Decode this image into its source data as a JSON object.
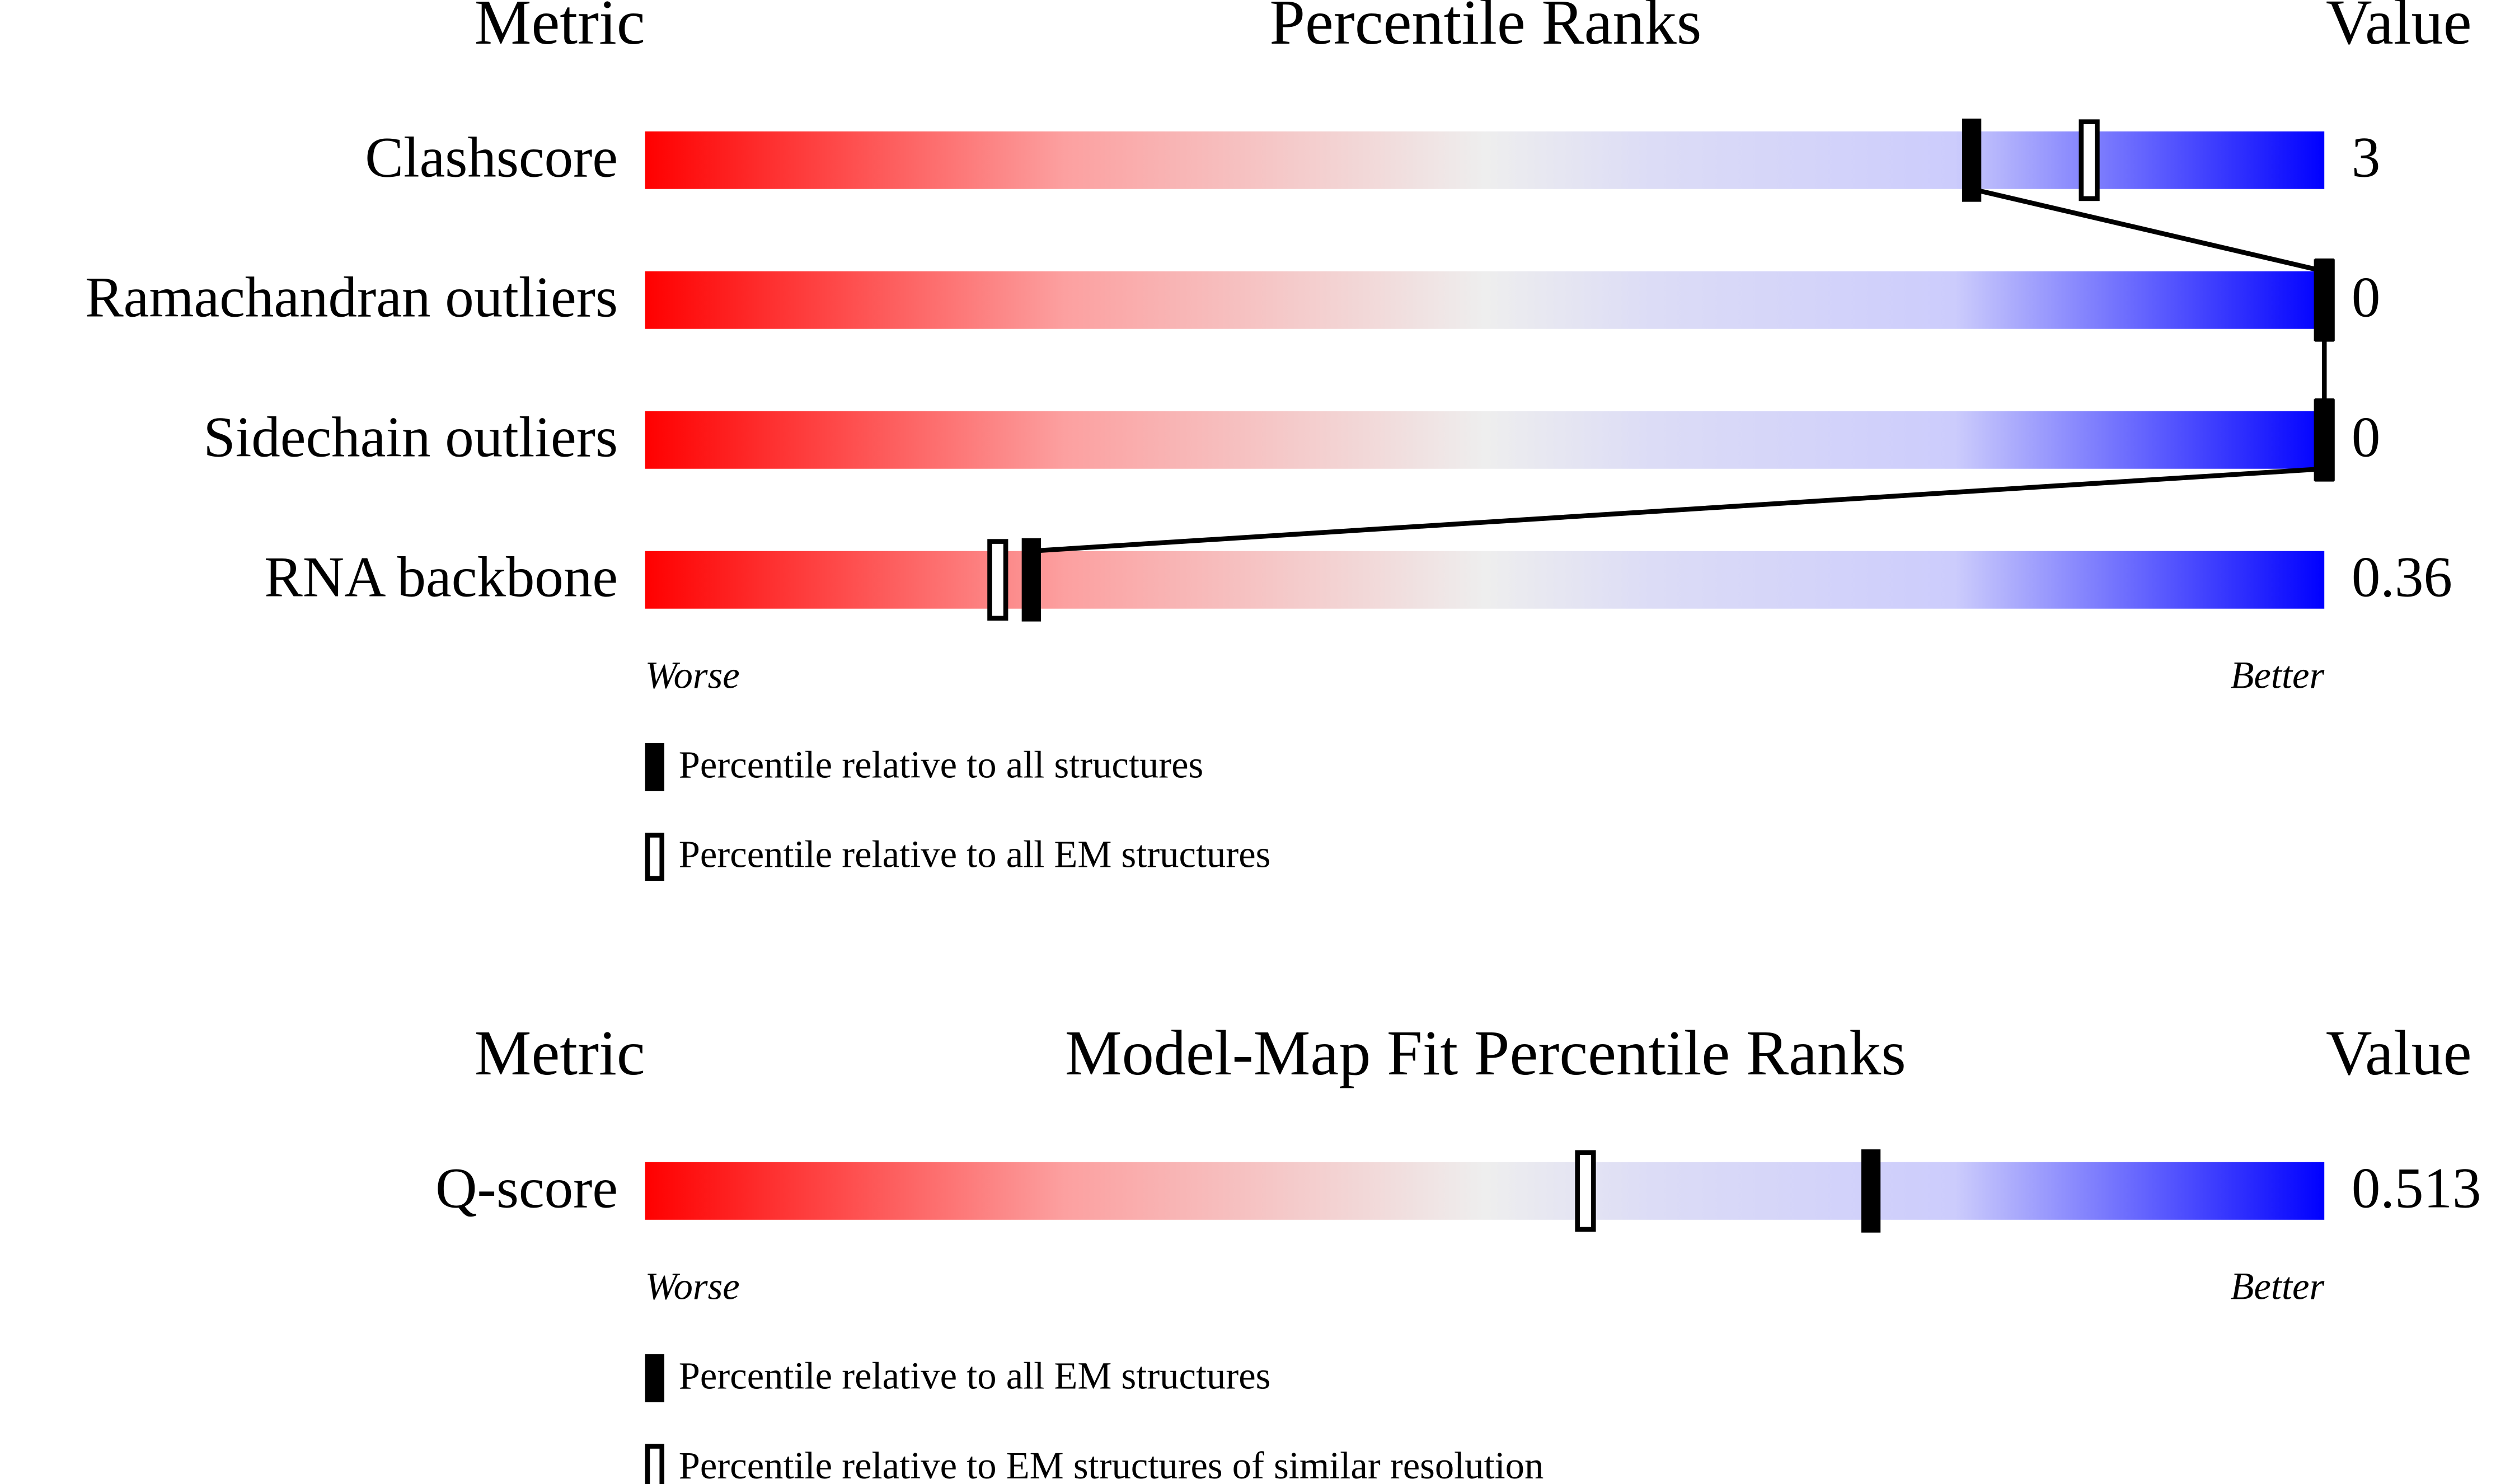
{
  "chart_data": [
    {
      "type": "slider",
      "metric_header": "Metric",
      "title": "Percentile Ranks",
      "value_header": "Value",
      "categories": [
        "Clashscore",
        "Ramachandran outliers",
        "Sidechain outliers",
        "RNA backbone"
      ],
      "metric_values": [
        3,
        0,
        0,
        0.36
      ],
      "xlim": [
        0,
        100
      ],
      "worse_label": "Worse",
      "better_label": "Better",
      "connect": true,
      "series": [
        {
          "name": "Percentile relative to all structures",
          "style": "filled",
          "color": "#000000",
          "values": [
            79,
            100,
            100,
            23
          ]
        },
        {
          "name": "Percentile relative to all EM structures",
          "style": "open",
          "color": "#000000",
          "values": [
            86,
            100,
            100,
            21
          ]
        }
      ]
    },
    {
      "type": "slider",
      "metric_header": "Metric",
      "title": "Model-Map Fit Percentile Ranks",
      "value_header": "Value",
      "categories": [
        "Q-score"
      ],
      "metric_values": [
        0.513
      ],
      "xlim": [
        0,
        100
      ],
      "worse_label": "Worse",
      "better_label": "Better",
      "connect": false,
      "series": [
        {
          "name": "Percentile relative to all EM structures",
          "style": "filled",
          "color": "#000000",
          "values": [
            73
          ]
        },
        {
          "name": "Percentile relative to EM structures of similar resolution",
          "style": "open",
          "color": "#000000",
          "values": [
            56
          ]
        }
      ]
    }
  ]
}
